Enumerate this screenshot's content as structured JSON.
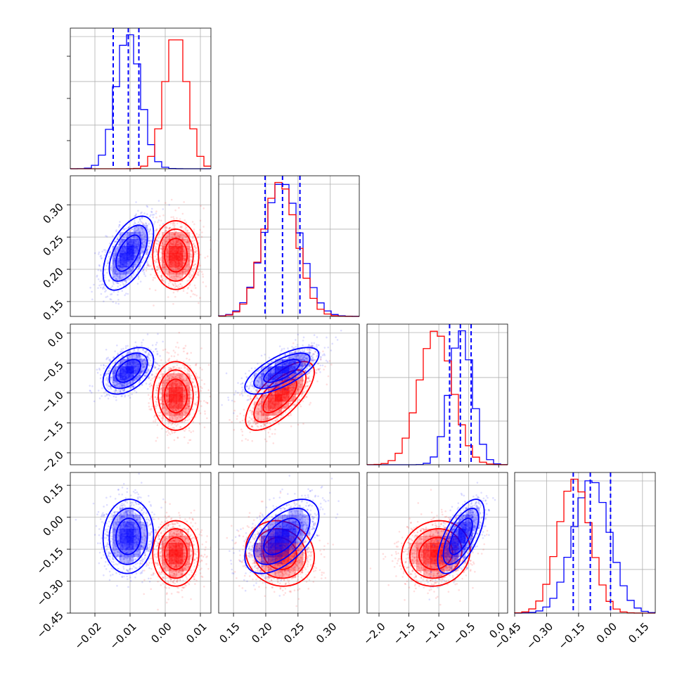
{
  "colors": {
    "series_a": "#0000ff",
    "series_b": "#ff0000",
    "grid": "#b0b0b0",
    "frame": "#4d4d4d"
  },
  "chart_data": {
    "type": "corner",
    "title": "",
    "parameters": [
      {
        "range": [
          -0.027,
          0.013
        ],
        "ticks": [
          "-0.02",
          "-0.01",
          "0.00",
          "0.01"
        ],
        "tick_values": [
          -0.02,
          -0.01,
          0.0,
          0.01
        ]
      },
      {
        "range": [
          0.127,
          0.345
        ],
        "ticks": [
          "0.15",
          "0.20",
          "0.25",
          "0.30"
        ],
        "tick_values": [
          0.15,
          0.2,
          0.25,
          0.3
        ]
      },
      {
        "range": [
          -2.2,
          0.15
        ],
        "ticks": [
          "-2.0",
          "-1.5",
          "-1.0",
          "-0.5",
          "0.0"
        ],
        "tick_values": [
          -2.0,
          -1.5,
          -1.0,
          -0.5,
          0.0
        ]
      },
      {
        "range": [
          -0.45,
          0.21
        ],
        "ticks": [
          "-0.45",
          "-0.30",
          "-0.15",
          "0.00",
          "0.15"
        ],
        "tick_values": [
          -0.45,
          -0.3,
          -0.15,
          0.0,
          0.15
        ]
      }
    ],
    "series": [
      {
        "color": "#0000ff",
        "mean": [
          -0.0105,
          0.225,
          -0.63,
          -0.09
        ],
        "std": [
          0.0035,
          0.028,
          0.19,
          0.085
        ],
        "quantiles": [
          [
            -0.0148,
            -0.0105,
            -0.0075
          ],
          [
            0.199,
            0.226,
            0.253
          ],
          [
            -0.82,
            -0.64,
            -0.46
          ],
          [
            -0.175,
            -0.095,
            0.0
          ]
        ],
        "correlations": {
          "0-1": 0.55,
          "0-2": 0.45,
          "0-3": 0.05,
          "1-2": 0.7,
          "1-3": 0.55,
          "2-3": 0.65
        }
      },
      {
        "color": "#ff0000",
        "mean": [
          0.003,
          0.222,
          -1.05,
          -0.17
        ],
        "std": [
          0.0032,
          0.026,
          0.28,
          0.075
        ],
        "correlations": {
          "0-1": 0.0,
          "0-2": 0.0,
          "0-3": 0.0,
          "1-2": 0.7,
          "1-3": -0.1,
          "2-3": 0.1
        }
      }
    ],
    "histogram_bins": 20,
    "grid": true
  }
}
